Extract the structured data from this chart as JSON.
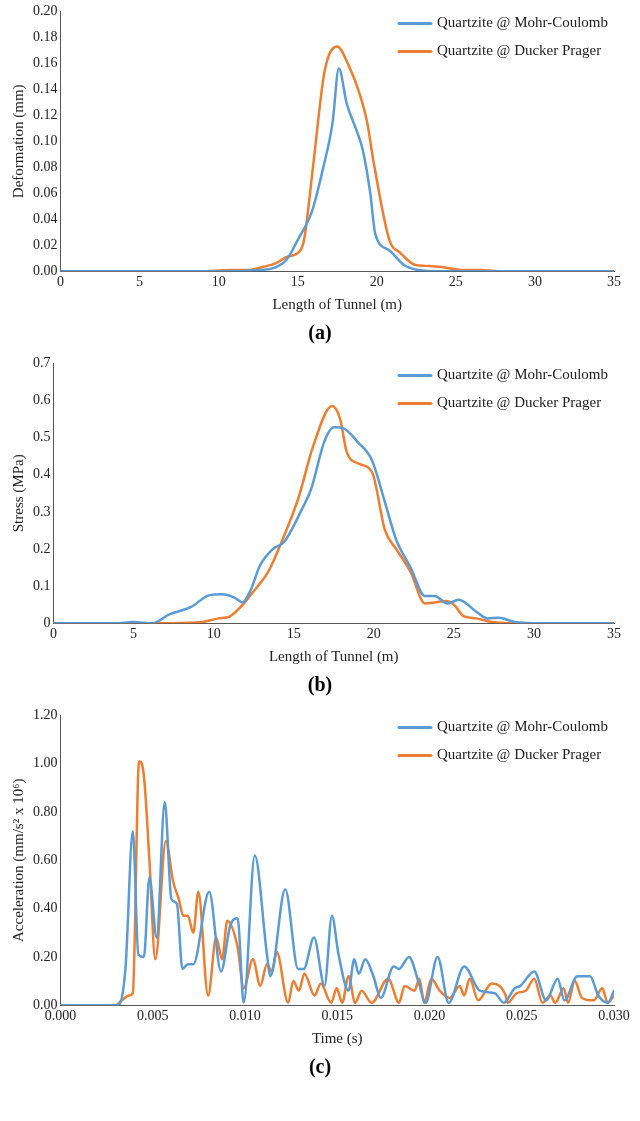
{
  "chart_data": [
    {
      "type": "line",
      "xlabel": "Length of Tunnel (m)",
      "ylabel": "Deformation (mm)",
      "annotations": [
        "(a)"
      ],
      "legend": "top right",
      "grid": false,
      "marker": "none",
      "line_style": "solid",
      "xlim": [
        0,
        35
      ],
      "xticks": [
        0,
        5,
        10,
        15,
        20,
        25,
        30,
        35
      ],
      "ylim": [
        0,
        0.2
      ],
      "yticks": [
        {
          "value": 0,
          "label": "0.00"
        },
        {
          "value": 0.02,
          "label": "0.02"
        },
        {
          "value": 0.04,
          "label": "0.04"
        },
        {
          "value": 0.06,
          "label": "0.06"
        },
        {
          "value": 0.08,
          "label": "0.08"
        },
        {
          "value": 0.1,
          "label": "0.10"
        },
        {
          "value": 0.12,
          "label": "0.12"
        },
        {
          "value": 0.14,
          "label": "0.14"
        },
        {
          "value": 0.16,
          "label": "0.16"
        },
        {
          "value": 0.18,
          "label": "0.18"
        },
        {
          "value": 0.2,
          "label": "0.20"
        }
      ],
      "series": [
        {
          "name": "Quartzite @ Mohr-Coulomb",
          "color": "#5b9bd5",
          "x": [
            0,
            10.1,
            12.7,
            13.6,
            14.3,
            15.0,
            15.9,
            16.6,
            17.2,
            17.6,
            18.1,
            18.7,
            19.1,
            19.6,
            19.9,
            20.8,
            21.7,
            22.6,
            24.2,
            35
          ],
          "values": [
            0,
            0,
            0.001,
            0.003,
            0.009,
            0.024,
            0.046,
            0.079,
            0.114,
            0.156,
            0.129,
            0.109,
            0.094,
            0.059,
            0.029,
            0.016,
            0.005,
            0.001,
            0,
            0
          ]
        },
        {
          "name": "Quartzite @ Ducker Prager",
          "color": "#ed7d31",
          "x": [
            0,
            9.2,
            10.8,
            12.0,
            12.7,
            13.6,
            14.3,
            15.1,
            15.4,
            16.0,
            16.7,
            17.5,
            18.2,
            18.9,
            19.4,
            19.8,
            20.8,
            21.5,
            22.4,
            23.3,
            24.2,
            25.4,
            26.6,
            27.7,
            35
          ],
          "values": [
            0,
            0,
            0.001,
            0.001,
            0.003,
            0.006,
            0.011,
            0.015,
            0.024,
            0.084,
            0.154,
            0.173,
            0.159,
            0.137,
            0.114,
            0.084,
            0.024,
            0.014,
            0.005,
            0.004,
            0.003,
            0.001,
            0.001,
            0,
            0
          ]
        }
      ]
    },
    {
      "type": "line",
      "xlabel": "Length of Tunnel (m)",
      "ylabel": "Stress (MPa)",
      "annotations": [
        "(b)"
      ],
      "legend": "top right",
      "grid": false,
      "marker": "none",
      "line_style": "solid",
      "xlim": [
        0,
        35
      ],
      "xticks": [
        0,
        5,
        10,
        15,
        20,
        25,
        30,
        35
      ],
      "ylim": [
        0,
        0.7
      ],
      "yticks": [
        0,
        0.1,
        0.2,
        0.3,
        0.4,
        0.5,
        0.6,
        0.7
      ],
      "series": [
        {
          "name": "Quartzite @ Mohr-Coulomb",
          "color": "#5b9bd5",
          "x": [
            0,
            3.8,
            5.0,
            6.2,
            7.2,
            8.6,
            9.7,
            10.5,
            11.3,
            11.8,
            12.3,
            12.9,
            13.7,
            14.4,
            15.5,
            16.1,
            16.9,
            17.5,
            18.1,
            19.0,
            19.9,
            20.7,
            21.4,
            22.3,
            23.2,
            23.8,
            24.6,
            25.3,
            26.4,
            27.1,
            27.8,
            28.8,
            30,
            35
          ],
          "values": [
            0,
            0,
            0.003,
            0,
            0.023,
            0.044,
            0.075,
            0.078,
            0.069,
            0.056,
            0.088,
            0.156,
            0.2,
            0.219,
            0.306,
            0.363,
            0.488,
            0.528,
            0.525,
            0.488,
            0.438,
            0.325,
            0.225,
            0.15,
            0.073,
            0.073,
            0.053,
            0.063,
            0.031,
            0.013,
            0.015,
            0.003,
            0,
            0
          ]
        },
        {
          "name": "Quartzite @ Ducker Prager",
          "color": "#ed7d31",
          "x": [
            0,
            7.4,
            9.3,
            10.3,
            11.0,
            11.7,
            12.4,
            13.4,
            14.3,
            15.3,
            16.2,
            17.4,
            17.9,
            18.3,
            19.0,
            19.9,
            20.7,
            21.4,
            22.3,
            23.2,
            23.8,
            24.5,
            25.0,
            25.6,
            26.4,
            27.4,
            28.3,
            35
          ],
          "values": [
            0,
            0,
            0.003,
            0.013,
            0.018,
            0.044,
            0.081,
            0.138,
            0.225,
            0.338,
            0.475,
            0.585,
            0.55,
            0.463,
            0.431,
            0.406,
            0.25,
            0.2,
            0.138,
            0.053,
            0.056,
            0.06,
            0.05,
            0.019,
            0.013,
            0.003,
            0,
            0
          ]
        }
      ]
    },
    {
      "type": "line",
      "xlabel": "Time (s)",
      "ylabel": "Acceleration (mm/s² x 10⁶)",
      "annotations": [
        "(c)"
      ],
      "legend": "top right",
      "grid": false,
      "marker": "none",
      "line_style": "solid",
      "xlim": [
        0,
        0.03
      ],
      "xticks": [
        {
          "value": 0,
          "label": "0.000"
        },
        {
          "value": 0.005,
          "label": "0.005"
        },
        {
          "value": 0.01,
          "label": "0.010"
        },
        {
          "value": 0.015,
          "label": "0.015"
        },
        {
          "value": 0.02,
          "label": "0.020"
        },
        {
          "value": 0.025,
          "label": "0.025"
        },
        {
          "value": 0.03,
          "label": "0.030"
        }
      ],
      "ylim": [
        0,
        1.2
      ],
      "yticks": [
        {
          "value": 0,
          "label": "0.00"
        },
        {
          "value": 0.2,
          "label": "0.20"
        },
        {
          "value": 0.4,
          "label": "0.40"
        },
        {
          "value": 0.6,
          "label": "0.60"
        },
        {
          "value": 0.8,
          "label": "0.80"
        },
        {
          "value": 1,
          "label": "1.00"
        },
        {
          "value": 1.2,
          "label": "1.20"
        }
      ],
      "series": [
        {
          "name": "Quartzite @ Mohr-Coulomb",
          "color": "#5b9bd5",
          "x": [
            0,
            0.00312,
            0.00352,
            0.00392,
            0.00422,
            0.00452,
            0.00482,
            0.00521,
            0.00565,
            0.00601,
            0.00631,
            0.00661,
            0.0069,
            0.0072,
            0.00806,
            0.0087,
            0.0092,
            0.0096,
            0.00993,
            0.01053,
            0.01119,
            0.01138,
            0.01218,
            0.01288,
            0.01318,
            0.01374,
            0.01431,
            0.01471,
            0.01507,
            0.01561,
            0.01592,
            0.01616,
            0.01652,
            0.01696,
            0.01736,
            0.01806,
            0.01835,
            0.01889,
            0.01939,
            0.01979,
            0.02044,
            0.02104,
            0.02188,
            0.02273,
            0.02353,
            0.02403,
            0.02462,
            0.02492,
            0.02568,
            0.02632,
            0.02695,
            0.02731,
            0.02801,
            0.0287,
            0.02915,
            0.02966,
            0.03
          ],
          "values": [
            0,
            0,
            0.15,
            0.72,
            0.21,
            0.2,
            0.53,
            0.28,
            0.84,
            0.44,
            0.42,
            0.15,
            0.17,
            0.17,
            0.47,
            0.14,
            0.33,
            0.36,
            0.01,
            0.62,
            0.21,
            0.12,
            0.48,
            0.15,
            0.15,
            0.28,
            0.08,
            0.37,
            0.21,
            0.06,
            0.19,
            0.13,
            0.19,
            0.12,
            0.03,
            0.16,
            0.15,
            0.2,
            0.1,
            0.01,
            0.2,
            0.01,
            0.16,
            0.06,
            0.05,
            0.01,
            0.07,
            0.08,
            0.14,
            0.02,
            0.11,
            0.02,
            0.12,
            0.12,
            0.04,
            0.01,
            0.06
          ]
        },
        {
          "name": "Quartzite @ Ducker Prager",
          "color": "#ed7d31",
          "x": [
            0,
            0.003,
            0.00332,
            0.00372,
            0.00392,
            0.00426,
            0.00452,
            0.00482,
            0.00514,
            0.00571,
            0.00611,
            0.00641,
            0.00665,
            0.0069,
            0.0072,
            0.00747,
            0.008,
            0.00844,
            0.00876,
            0.00904,
            0.0096,
            0.00993,
            0.01043,
            0.01083,
            0.01119,
            0.01144,
            0.01172,
            0.01234,
            0.01262,
            0.01292,
            0.01322,
            0.01377,
            0.01411,
            0.01467,
            0.01497,
            0.01527,
            0.01561,
            0.01597,
            0.01632,
            0.01686,
            0.01776,
            0.01835,
            0.01865,
            0.01919,
            0.01945,
            0.01971,
            0.0201,
            0.02055,
            0.0211,
            0.02164,
            0.02188,
            0.02218,
            0.02264,
            0.02337,
            0.02413,
            0.02423,
            0.02473,
            0.02522,
            0.02568,
            0.02612,
            0.02655,
            0.02682,
            0.02727,
            0.02751,
            0.02787,
            0.02827,
            0.02891,
            0.02936,
            0.02966,
            0.03
          ],
          "values": [
            0,
            0,
            0.02,
            0.04,
            0.05,
            1.01,
            0.95,
            0.6,
            0.19,
            0.68,
            0.51,
            0.44,
            0.37,
            0.37,
            0.3,
            0.47,
            0.04,
            0.28,
            0.19,
            0.35,
            0.24,
            0.07,
            0.19,
            0.08,
            0.17,
            0.14,
            0.22,
            0.01,
            0.1,
            0.06,
            0.13,
            0.04,
            0.09,
            0.01,
            0.07,
            0.01,
            0.12,
            0.01,
            0.06,
            0.01,
            0.11,
            0.01,
            0.08,
            0.06,
            0.11,
            0.01,
            0.11,
            0.06,
            0.03,
            0.08,
            0.04,
            0.11,
            0.02,
            0.09,
            0.04,
            0.01,
            0.05,
            0.06,
            0.11,
            0.01,
            0.04,
            0.01,
            0.07,
            0.01,
            0.1,
            0.03,
            0.02,
            0.07,
            0.01,
            0.04
          ]
        }
      ]
    }
  ]
}
